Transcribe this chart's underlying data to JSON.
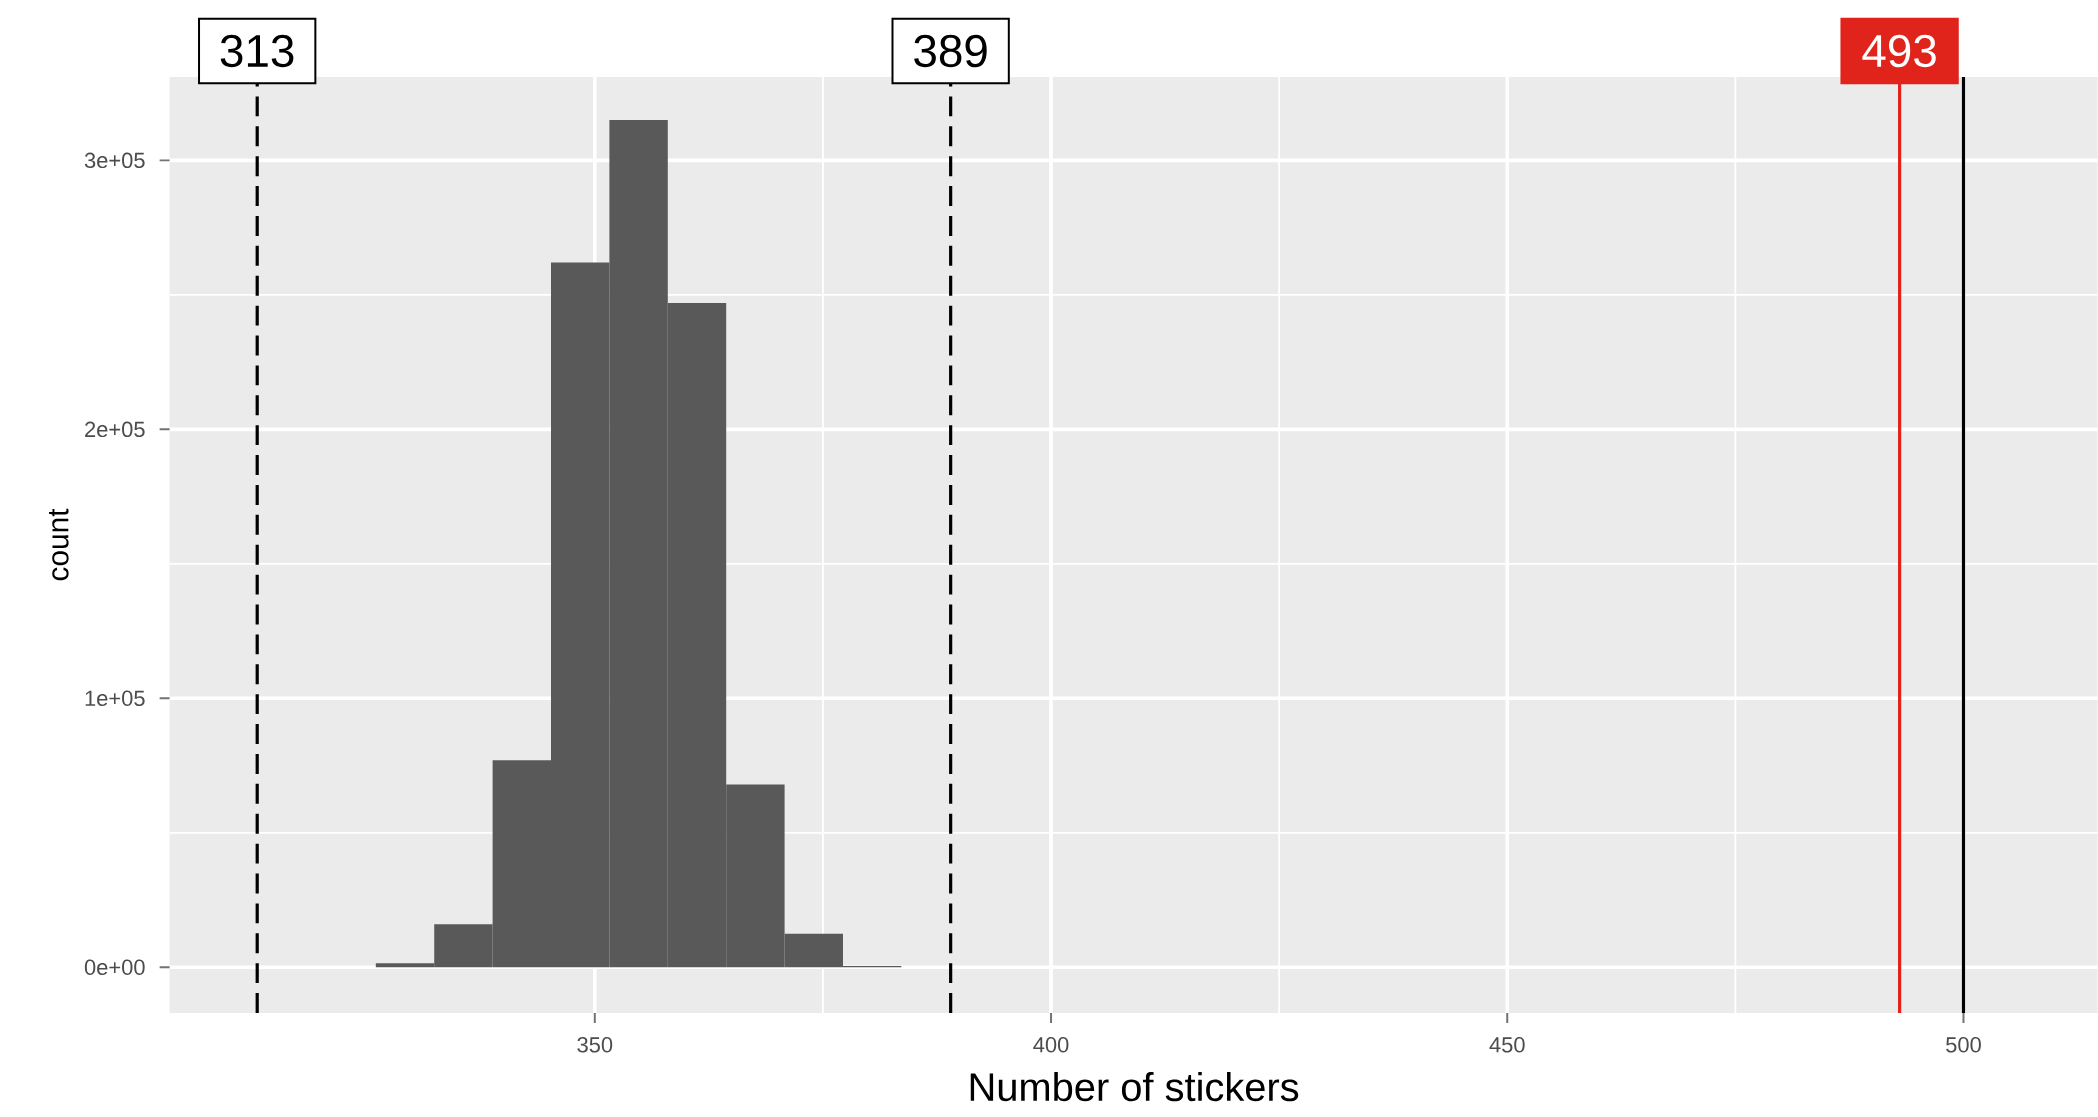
{
  "chart_data": {
    "type": "histogram",
    "xlabel": "Number of stickers",
    "ylabel": "count",
    "bins": [
      326,
      332.4,
      338.8,
      345.2,
      351.6,
      358,
      364.4,
      370.8,
      377.2,
      383.6
    ],
    "values": [
      1500,
      16000,
      77000,
      262000,
      315000,
      247000,
      68000,
      12500,
      500
    ],
    "color": "#595959",
    "xlim": [
      303.4,
      514.7
    ],
    "ylim": [
      -17000,
      331000
    ],
    "xticks": [
      350,
      400,
      450,
      500
    ],
    "yticks": [
      {
        "value": 0,
        "label": "0e+00"
      },
      {
        "value": 100000,
        "label": "1e+05"
      },
      {
        "value": 200000,
        "label": "2e+05"
      },
      {
        "value": 300000,
        "label": "3e+05"
      }
    ],
    "grid": true,
    "ref_lines": [
      {
        "axis": "x",
        "value": 313,
        "label": "313",
        "line_style": "dashed",
        "color": "#000000"
      },
      {
        "axis": "x",
        "value": 389,
        "label": "389",
        "line_style": "dashed",
        "color": "#000000"
      },
      {
        "axis": "x",
        "value": 493,
        "label": "493",
        "line_style": "solid",
        "color": "#e0231b"
      },
      {
        "axis": "x",
        "value": 500,
        "line_style": "solid",
        "color": "#000000"
      }
    ]
  }
}
